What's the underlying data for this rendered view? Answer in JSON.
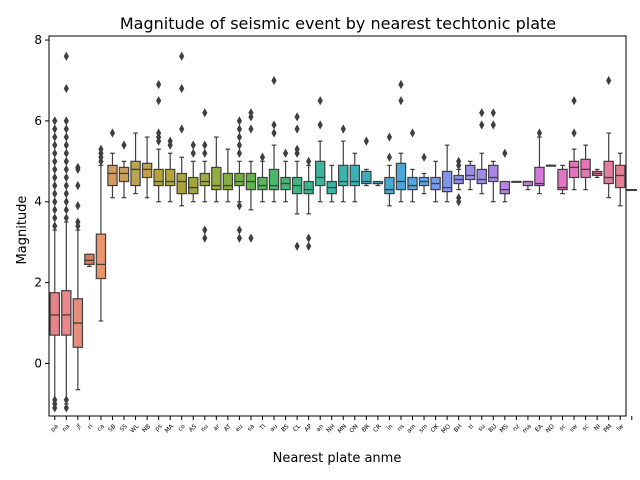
{
  "chart_data": {
    "type": "boxplot",
    "title": "Magnitude of seismic event by nearest techtonic plate",
    "xlabel": "Nearest plate anme",
    "ylabel": "Magnitude",
    "ylim": [
      -1.3,
      8.1
    ],
    "yticks": [
      0,
      2,
      4,
      6,
      8
    ],
    "grid": false,
    "categories": [
      "pa",
      "na",
      "jf",
      "ri",
      "ca",
      "SB",
      "SS",
      "WL",
      "NB",
      "ps",
      "MA",
      "co",
      "AS",
      "nu",
      "ar",
      "AT",
      "eu",
      "sa",
      "TI",
      "au",
      "BS",
      "CL",
      "AP",
      "an",
      "NH",
      "MN",
      "ON",
      "BR",
      "CR",
      "in",
      "ns",
      "am",
      "sm",
      "OK",
      "MO",
      "BH",
      "ti",
      "su",
      "BU",
      "MS",
      "nz",
      "ma",
      "EA",
      "ND",
      "sc",
      "sw",
      "sc",
      "NI",
      "PM",
      "lw"
    ],
    "colors": [
      "#E8838C",
      "#E8868A",
      "#E58E7C",
      "#D97A60",
      "#E8956A",
      "#D49A5A",
      "#C8A05C",
      "#BBA250",
      "#C4A04F",
      "#B7A23C",
      "#B4A440",
      "#ABA43D",
      "#A3A73A",
      "#9CAB40",
      "#93AD3E",
      "#82AE3D",
      "#73B13F",
      "#62B44A",
      "#55B65C",
      "#48B769",
      "#45B774",
      "#3DB682",
      "#39B68F",
      "#3DB59C",
      "#3BB3A6",
      "#3EB2AE",
      "#3AB1B7",
      "#3CAFBE",
      "#3DAEC7",
      "#42ABCF",
      "#4CA6D8",
      "#58A3DE",
      "#66A0E3",
      "#729CEA",
      "#7E97EC",
      "#8A93EC",
      "#9890EB",
      "#A18CEB",
      "#AC87EB",
      "#B783E9",
      "#C37FE6",
      "#CB7CE0",
      "#D479DA",
      "#DC77D3",
      "#E274C9",
      "#E474BE",
      "#E476B4",
      "#E579A9",
      "#E67C9F",
      "#E67F94"
    ],
    "boxes": [
      {
        "whislo": -1.0,
        "q1": 0.7,
        "med": 1.2,
        "q3": 1.75,
        "whishi": 3.3,
        "fliers": [
          3.4,
          3.6,
          3.8,
          4.0,
          4.2,
          4.4,
          4.6,
          4.8,
          5.0,
          5.2,
          5.4,
          5.6,
          5.8,
          6.0,
          -0.9,
          -1.0,
          -1.1
        ]
      },
      {
        "whislo": -1.0,
        "q1": 0.7,
        "med": 1.2,
        "q3": 1.8,
        "whishi": 3.5,
        "fliers": [
          3.6,
          3.8,
          4.0,
          4.2,
          4.4,
          4.6,
          4.8,
          5.0,
          5.2,
          5.4,
          5.6,
          5.8,
          6.0,
          6.8,
          7.6,
          -0.9,
          -1.1
        ]
      },
      {
        "whislo": -0.65,
        "q1": 0.4,
        "med": 1.0,
        "q3": 1.6,
        "whishi": 3.3,
        "fliers": [
          3.4,
          3.5,
          3.9,
          4.4,
          4.8,
          4.85
        ]
      },
      {
        "whislo": 2.4,
        "q1": 2.45,
        "med": 2.55,
        "q3": 2.7,
        "whishi": 2.7,
        "fliers": []
      },
      {
        "whislo": 1.05,
        "q1": 2.1,
        "med": 2.45,
        "q3": 3.2,
        "whishi": 4.9,
        "fliers": [
          5.0,
          5.1,
          5.2,
          5.3
        ]
      },
      {
        "whislo": 4.1,
        "q1": 4.4,
        "med": 4.7,
        "q3": 4.9,
        "whishi": 5.2,
        "fliers": [
          5.7
        ]
      },
      {
        "whislo": 4.1,
        "q1": 4.5,
        "med": 4.7,
        "q3": 4.85,
        "whishi": 5.0,
        "fliers": [
          5.4
        ]
      },
      {
        "whislo": 4.2,
        "q1": 4.4,
        "med": 4.8,
        "q3": 5.0,
        "whishi": 5.7,
        "fliers": []
      },
      {
        "whislo": 4.1,
        "q1": 4.6,
        "med": 4.8,
        "q3": 4.95,
        "whishi": 5.6,
        "fliers": []
      },
      {
        "whislo": 4.0,
        "q1": 4.4,
        "med": 4.5,
        "q3": 4.8,
        "whishi": 5.3,
        "fliers": [
          5.5,
          5.6,
          5.7,
          6.5,
          6.9
        ]
      },
      {
        "whislo": 4.0,
        "q1": 4.4,
        "med": 4.5,
        "q3": 4.8,
        "whishi": 5.2,
        "fliers": [
          5.4,
          5.5
        ]
      },
      {
        "whislo": 3.9,
        "q1": 4.2,
        "med": 4.5,
        "q3": 4.7,
        "whishi": 5.1,
        "fliers": [
          5.8,
          6.8,
          7.6
        ]
      },
      {
        "whislo": 4.0,
        "q1": 4.2,
        "med": 4.35,
        "q3": 4.6,
        "whishi": 5.0,
        "fliers": [
          5.2,
          5.4
        ]
      },
      {
        "whislo": 4.0,
        "q1": 4.4,
        "med": 4.5,
        "q3": 4.7,
        "whishi": 5.0,
        "fliers": [
          5.2,
          5.4,
          6.2,
          3.3,
          3.1
        ]
      },
      {
        "whislo": 4.0,
        "q1": 4.3,
        "med": 4.4,
        "q3": 4.85,
        "whishi": 5.6,
        "fliers": []
      },
      {
        "whislo": 4.0,
        "q1": 4.3,
        "med": 4.4,
        "q3": 4.7,
        "whishi": 5.3,
        "fliers": []
      },
      {
        "whislo": 4.0,
        "q1": 4.4,
        "med": 4.5,
        "q3": 4.7,
        "whishi": 5.0,
        "fliers": [
          5.2,
          5.4,
          5.6,
          5.8,
          6.0,
          3.9,
          3.3,
          3.1
        ]
      },
      {
        "whislo": 3.8,
        "q1": 4.3,
        "med": 4.5,
        "q3": 4.7,
        "whishi": 5.0,
        "fliers": [
          5.8,
          6.1,
          6.2,
          3.1
        ]
      },
      {
        "whislo": 4.0,
        "q1": 4.3,
        "med": 4.4,
        "q3": 4.6,
        "whishi": 5.0,
        "fliers": [
          5.1
        ]
      },
      {
        "whislo": 4.0,
        "q1": 4.3,
        "med": 4.4,
        "q3": 4.8,
        "whishi": 5.4,
        "fliers": [
          5.7,
          5.9,
          7.0
        ]
      },
      {
        "whislo": 4.0,
        "q1": 4.3,
        "med": 4.45,
        "q3": 4.6,
        "whishi": 5.0,
        "fliers": [
          5.2
        ]
      },
      {
        "whislo": 3.7,
        "q1": 4.2,
        "med": 4.4,
        "q3": 4.6,
        "whishi": 5.0,
        "fliers": [
          5.2,
          5.3,
          5.8,
          6.1,
          2.9
        ]
      },
      {
        "whislo": 3.7,
        "q1": 4.2,
        "med": 4.3,
        "q3": 4.5,
        "whishi": 4.9,
        "fliers": [
          5.0,
          3.1,
          2.9
        ]
      },
      {
        "whislo": 4.0,
        "q1": 4.4,
        "med": 4.6,
        "q3": 5.0,
        "whishi": 5.5,
        "fliers": [
          5.9,
          6.5
        ]
      },
      {
        "whislo": 4.0,
        "q1": 4.2,
        "med": 4.35,
        "q3": 4.5,
        "whishi": 4.9,
        "fliers": []
      },
      {
        "whislo": 4.0,
        "q1": 4.4,
        "med": 4.5,
        "q3": 4.9,
        "whishi": 5.5,
        "fliers": [
          5.8
        ]
      },
      {
        "whislo": 4.0,
        "q1": 4.4,
        "med": 4.5,
        "q3": 4.9,
        "whishi": 5.2,
        "fliers": []
      },
      {
        "whislo": 4.4,
        "q1": 4.45,
        "med": 4.5,
        "q3": 4.75,
        "whishi": 4.8,
        "fliers": [
          5.5
        ]
      },
      {
        "whislo": 4.4,
        "q1": 4.45,
        "med": 4.45,
        "q3": 4.5,
        "whishi": 4.5,
        "fliers": []
      },
      {
        "whislo": 3.9,
        "q1": 4.2,
        "med": 4.3,
        "q3": 4.6,
        "whishi": 4.9,
        "fliers": [
          5.1,
          5.6
        ]
      },
      {
        "whislo": 4.0,
        "q1": 4.3,
        "med": 4.5,
        "q3": 4.95,
        "whishi": 5.2,
        "fliers": [
          6.5,
          6.9
        ]
      },
      {
        "whislo": 4.0,
        "q1": 4.3,
        "med": 4.4,
        "q3": 4.6,
        "whishi": 4.8,
        "fliers": [
          5.7
        ]
      },
      {
        "whislo": 4.2,
        "q1": 4.4,
        "med": 4.5,
        "q3": 4.6,
        "whishi": 4.7,
        "fliers": [
          5.1
        ]
      },
      {
        "whislo": 4.0,
        "q1": 4.3,
        "med": 4.45,
        "q3": 4.6,
        "whishi": 5.0,
        "fliers": []
      },
      {
        "whislo": 4.0,
        "q1": 4.25,
        "med": 4.35,
        "q3": 4.75,
        "whishi": 5.4,
        "fliers": []
      },
      {
        "whislo": 4.3,
        "q1": 4.45,
        "med": 4.55,
        "q3": 4.65,
        "whishi": 4.8,
        "fliers": [
          4.9,
          5.0,
          4.1,
          4.0
        ]
      },
      {
        "whislo": 4.3,
        "q1": 4.55,
        "med": 4.65,
        "q3": 4.9,
        "whishi": 5.0,
        "fliers": []
      },
      {
        "whislo": 4.2,
        "q1": 4.45,
        "med": 4.55,
        "q3": 4.8,
        "whishi": 5.2,
        "fliers": [
          5.9,
          6.2
        ]
      },
      {
        "whislo": 4.0,
        "q1": 4.5,
        "med": 4.6,
        "q3": 4.9,
        "whishi": 5.0,
        "fliers": [
          5.9,
          6.2
        ]
      },
      {
        "whislo": 4.0,
        "q1": 4.2,
        "med": 4.3,
        "q3": 4.5,
        "whishi": 4.5,
        "fliers": [
          5.2
        ]
      },
      {
        "whislo": 4.5,
        "q1": 4.5,
        "med": 4.5,
        "q3": 4.5,
        "whishi": 4.5,
        "fliers": []
      },
      {
        "whislo": 4.3,
        "q1": 4.4,
        "med": 4.5,
        "q3": 4.5,
        "whishi": 4.5,
        "fliers": []
      },
      {
        "whislo": 4.2,
        "q1": 4.4,
        "med": 4.45,
        "q3": 4.85,
        "whishi": 5.6,
        "fliers": [
          5.7
        ]
      },
      {
        "whislo": 4.9,
        "q1": 4.9,
        "med": 4.9,
        "q3": 4.9,
        "whishi": 4.9,
        "fliers": []
      },
      {
        "whislo": 4.2,
        "q1": 4.3,
        "med": 4.35,
        "q3": 4.8,
        "whishi": 4.9,
        "fliers": []
      },
      {
        "whislo": 4.3,
        "q1": 4.6,
        "med": 4.85,
        "q3": 5.0,
        "whishi": 5.3,
        "fliers": [
          5.7,
          6.5
        ]
      },
      {
        "whislo": 4.3,
        "q1": 4.6,
        "med": 4.8,
        "q3": 5.05,
        "whishi": 5.4,
        "fliers": []
      },
      {
        "whislo": 4.6,
        "q1": 4.65,
        "med": 4.7,
        "q3": 4.75,
        "whishi": 4.8,
        "fliers": []
      },
      {
        "whislo": 4.1,
        "q1": 4.45,
        "med": 4.6,
        "q3": 5.0,
        "whishi": 5.7,
        "fliers": [
          7.0
        ]
      },
      {
        "whislo": 3.9,
        "q1": 4.35,
        "med": 4.65,
        "q3": 4.9,
        "whishi": 5.2,
        "fliers": []
      },
      {
        "whislo": 4.3,
        "q1": 4.3,
        "med": 4.3,
        "q3": 4.3,
        "whishi": 4.3,
        "fliers": []
      }
    ]
  }
}
